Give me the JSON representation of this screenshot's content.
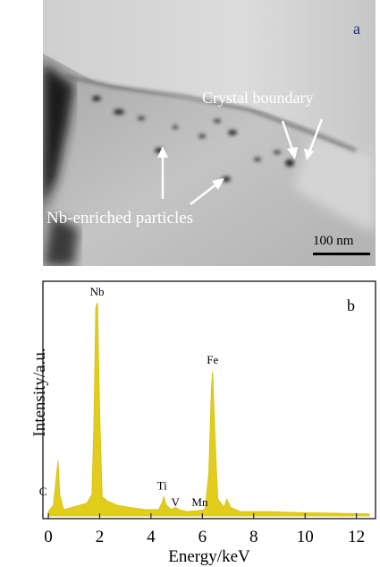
{
  "panel_a": {
    "panel_label": "a",
    "annotations": {
      "crystal_boundary": "Crystal boundary",
      "particles": "Nb-enriched particles"
    },
    "scale_bar": "100 nm"
  },
  "panel_b": {
    "panel_label": "b",
    "chart_data": {
      "type": "line",
      "xlabel": "Energy/keV",
      "ylabel": "Intensity/a.u.",
      "xlim": [
        0,
        12.5
      ],
      "ylim": [
        0,
        100
      ],
      "x_ticks": [
        "0",
        "2",
        "4",
        "6",
        "8",
        "10",
        "12"
      ],
      "series_color": "#e2cd1c",
      "peaks": [
        {
          "label": "Nb",
          "energy": 1.9,
          "intensity": 100
        },
        {
          "label": "Fe",
          "energy": 6.4,
          "intensity": 68
        },
        {
          "label": "Ti",
          "energy": 4.5,
          "intensity": 9
        },
        {
          "label": "V",
          "energy": 4.95,
          "intensity": 2
        },
        {
          "label": "Mn",
          "energy": 5.9,
          "intensity": 2
        },
        {
          "label": "C",
          "energy": 0.28,
          "intensity": 8
        }
      ],
      "spectrum": [
        [
          0.0,
          2
        ],
        [
          0.2,
          5
        ],
        [
          0.3,
          17
        ],
        [
          0.38,
          26
        ],
        [
          0.45,
          10
        ],
        [
          0.6,
          3
        ],
        [
          0.9,
          4
        ],
        [
          1.2,
          5
        ],
        [
          1.5,
          6
        ],
        [
          1.7,
          10
        ],
        [
          1.78,
          45
        ],
        [
          1.85,
          98
        ],
        [
          1.92,
          100
        ],
        [
          2.0,
          50
        ],
        [
          2.1,
          9
        ],
        [
          2.3,
          7
        ],
        [
          2.7,
          5
        ],
        [
          3.2,
          4
        ],
        [
          3.8,
          3
        ],
        [
          4.3,
          3
        ],
        [
          4.42,
          6
        ],
        [
          4.5,
          9
        ],
        [
          4.6,
          5
        ],
        [
          4.8,
          3
        ],
        [
          4.95,
          4
        ],
        [
          5.1,
          3
        ],
        [
          5.4,
          2
        ],
        [
          5.8,
          2.5
        ],
        [
          6.1,
          3
        ],
        [
          6.25,
          20
        ],
        [
          6.35,
          60
        ],
        [
          6.4,
          68
        ],
        [
          6.5,
          35
        ],
        [
          6.6,
          8
        ],
        [
          6.85,
          4
        ],
        [
          6.95,
          8
        ],
        [
          7.1,
          4
        ],
        [
          7.5,
          2
        ],
        [
          8.5,
          2
        ],
        [
          10.0,
          1.5
        ],
        [
          11.5,
          1.2
        ],
        [
          12.5,
          1
        ]
      ]
    },
    "peak_labels": [
      "Nb",
      "Fe",
      "Ti",
      "V",
      "Mn",
      "C"
    ]
  }
}
